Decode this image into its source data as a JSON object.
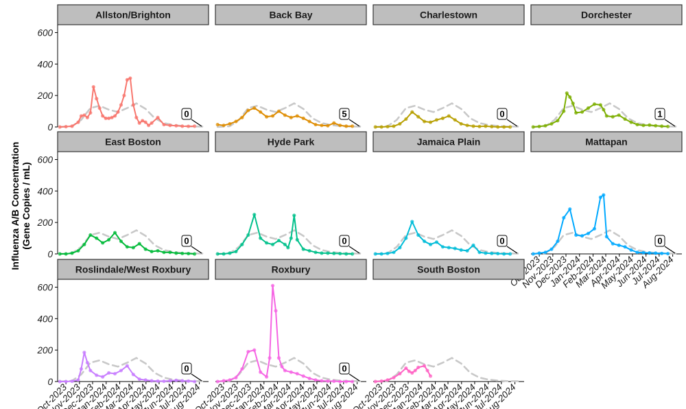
{
  "chart_data": {
    "type": "line",
    "ylabel": [
      "Influenza A/B Concentration",
      "(Gene Copies / mL)"
    ],
    "ylim": [
      0,
      650
    ],
    "yticks": [
      0,
      200,
      400,
      600
    ],
    "xlim": [
      "2023-09-12",
      "2024-08-22"
    ],
    "xticks": [
      "2023-10-01",
      "2023-11-01",
      "2023-12-01",
      "2024-01-01",
      "2024-02-01",
      "2024-03-01",
      "2024-04-01",
      "2024-05-01",
      "2024-06-01",
      "2024-07-01",
      "2024-08-01"
    ],
    "xtick_labels": [
      "Oct-2023",
      "Nov-2023",
      "Dec-2023",
      "Jan-2024",
      "Feb-2024",
      "Mar-2024",
      "Apr-2024",
      "May-2024",
      "Jun-2024",
      "Jul-2024",
      "Aug-2024"
    ],
    "grid": false,
    "reference": {
      "style": "dashed",
      "color": "#c8c8c8",
      "x": [
        "2023-09-17",
        "2023-10-15",
        "2023-11-05",
        "2023-11-26",
        "2023-12-17",
        "2024-01-07",
        "2024-01-28",
        "2024-02-18",
        "2024-03-10",
        "2024-03-31",
        "2024-04-21",
        "2024-05-12",
        "2024-06-02",
        "2024-06-23",
        "2024-07-14",
        "2024-08-11"
      ],
      "y": [
        0,
        5,
        45,
        120,
        135,
        110,
        95,
        120,
        150,
        115,
        55,
        25,
        12,
        6,
        3,
        2
      ]
    },
    "panels": [
      {
        "name": "Allston/Brighton",
        "color": "#F8766D",
        "label": "0",
        "x": [
          "2023-09-17",
          "2023-10-01",
          "2023-10-15",
          "2023-10-29",
          "2023-11-05",
          "2023-11-12",
          "2023-11-19",
          "2023-11-26",
          "2023-12-03",
          "2023-12-10",
          "2023-12-17",
          "2023-12-24",
          "2023-12-31",
          "2024-01-07",
          "2024-01-14",
          "2024-01-21",
          "2024-01-28",
          "2024-02-04",
          "2024-02-11",
          "2024-02-18",
          "2024-02-25",
          "2024-03-03",
          "2024-03-10",
          "2024-03-17",
          "2024-03-24",
          "2024-03-31",
          "2024-04-07",
          "2024-04-14",
          "2024-04-28",
          "2024-05-12",
          "2024-05-26",
          "2024-06-09",
          "2024-06-23",
          "2024-07-07",
          "2024-07-21"
        ],
        "y": [
          0,
          2,
          5,
          30,
          70,
          75,
          60,
          90,
          255,
          180,
          120,
          70,
          55,
          55,
          60,
          70,
          95,
          140,
          200,
          300,
          310,
          140,
          60,
          25,
          40,
          30,
          10,
          25,
          60,
          15,
          10,
          8,
          5,
          4,
          5
        ]
      },
      {
        "name": "Back Bay",
        "color": "#DE8C00",
        "label": "5",
        "x": [
          "2023-09-17",
          "2023-10-01",
          "2023-10-15",
          "2023-10-29",
          "2023-11-12",
          "2023-11-26",
          "2023-12-10",
          "2023-12-24",
          "2024-01-07",
          "2024-01-21",
          "2024-02-04",
          "2024-02-18",
          "2024-03-03",
          "2024-03-17",
          "2024-03-31",
          "2024-04-14",
          "2024-04-28",
          "2024-05-12",
          "2024-05-26",
          "2024-06-09",
          "2024-06-23",
          "2024-07-07",
          "2024-07-21"
        ],
        "y": [
          15,
          10,
          20,
          35,
          60,
          105,
          120,
          95,
          65,
          70,
          100,
          75,
          60,
          70,
          55,
          35,
          15,
          10,
          8,
          25,
          10,
          5,
          5
        ]
      },
      {
        "name": "Charlestown",
        "color": "#B79F00",
        "label": "0",
        "x": [
          "2023-09-17",
          "2023-10-01",
          "2023-10-15",
          "2023-10-29",
          "2023-11-12",
          "2023-11-26",
          "2023-12-10",
          "2023-12-24",
          "2024-01-07",
          "2024-01-21",
          "2024-02-04",
          "2024-02-18",
          "2024-03-03",
          "2024-03-17",
          "2024-03-31",
          "2024-04-14",
          "2024-04-28",
          "2024-05-12",
          "2024-05-26",
          "2024-06-09",
          "2024-06-23",
          "2024-07-07",
          "2024-07-21"
        ],
        "y": [
          0,
          0,
          2,
          5,
          20,
          50,
          95,
          65,
          35,
          30,
          45,
          55,
          70,
          45,
          20,
          10,
          5,
          3,
          5,
          2,
          0,
          0,
          0
        ]
      },
      {
        "name": "Dorchester",
        "color": "#7CAE00",
        "label": "1",
        "x": [
          "2023-09-17",
          "2023-10-01",
          "2023-10-15",
          "2023-10-29",
          "2023-11-12",
          "2023-11-26",
          "2023-12-03",
          "2023-12-10",
          "2023-12-17",
          "2023-12-24",
          "2024-01-07",
          "2024-01-21",
          "2024-02-04",
          "2024-02-18",
          "2024-02-25",
          "2024-03-03",
          "2024-03-17",
          "2024-03-31",
          "2024-04-14",
          "2024-04-28",
          "2024-05-12",
          "2024-05-26",
          "2024-06-09",
          "2024-06-23",
          "2024-07-07",
          "2024-07-21"
        ],
        "y": [
          0,
          3,
          8,
          20,
          40,
          100,
          215,
          190,
          150,
          90,
          95,
          120,
          145,
          140,
          110,
          70,
          65,
          75,
          50,
          30,
          15,
          10,
          12,
          8,
          5,
          3
        ]
      },
      {
        "name": "East Boston",
        "color": "#00BA38",
        "label": "0",
        "x": [
          "2023-09-17",
          "2023-10-01",
          "2023-10-15",
          "2023-10-29",
          "2023-11-12",
          "2023-11-26",
          "2023-12-10",
          "2023-12-24",
          "2024-01-07",
          "2024-01-21",
          "2024-02-04",
          "2024-02-18",
          "2024-03-03",
          "2024-03-17",
          "2024-03-31",
          "2024-04-14",
          "2024-04-28",
          "2024-05-12",
          "2024-05-26",
          "2024-06-09",
          "2024-06-23",
          "2024-07-07",
          "2024-07-21"
        ],
        "y": [
          0,
          0,
          5,
          20,
          60,
          120,
          100,
          70,
          90,
          135,
          80,
          45,
          40,
          65,
          30,
          15,
          20,
          10,
          10,
          5,
          3,
          2,
          0
        ]
      },
      {
        "name": "Hyde Park",
        "color": "#00C08B",
        "label": "0",
        "x": [
          "2023-09-17",
          "2023-10-01",
          "2023-10-15",
          "2023-10-29",
          "2023-11-12",
          "2023-11-26",
          "2023-12-10",
          "2023-12-24",
          "2024-01-07",
          "2024-01-21",
          "2024-02-04",
          "2024-02-18",
          "2024-02-25",
          "2024-03-03",
          "2024-03-10",
          "2024-03-17",
          "2024-03-31",
          "2024-04-14",
          "2024-04-28",
          "2024-05-12",
          "2024-05-26",
          "2024-06-09",
          "2024-06-23",
          "2024-07-07",
          "2024-07-21"
        ],
        "y": [
          0,
          0,
          5,
          15,
          60,
          120,
          250,
          100,
          70,
          60,
          85,
          60,
          40,
          100,
          245,
          90,
          30,
          20,
          10,
          5,
          5,
          3,
          2,
          0,
          0
        ]
      },
      {
        "name": "Jamaica Plain",
        "color": "#00BCD8",
        "label": "0",
        "x": [
          "2023-09-17",
          "2023-10-01",
          "2023-10-15",
          "2023-10-29",
          "2023-11-12",
          "2023-11-26",
          "2023-12-10",
          "2023-12-24",
          "2024-01-07",
          "2024-01-21",
          "2024-02-04",
          "2024-02-18",
          "2024-03-03",
          "2024-03-17",
          "2024-03-31",
          "2024-04-14",
          "2024-04-28",
          "2024-05-12",
          "2024-05-26",
          "2024-06-09",
          "2024-06-23",
          "2024-07-07",
          "2024-07-21"
        ],
        "y": [
          0,
          0,
          3,
          10,
          40,
          100,
          205,
          120,
          80,
          60,
          75,
          45,
          40,
          35,
          25,
          20,
          55,
          10,
          5,
          3,
          2,
          0,
          0
        ]
      },
      {
        "name": "Mattapan",
        "color": "#00A9FF",
        "label": "0",
        "x": [
          "2023-09-17",
          "2023-10-01",
          "2023-10-15",
          "2023-10-29",
          "2023-11-12",
          "2023-11-26",
          "2023-12-10",
          "2023-12-24",
          "2024-01-07",
          "2024-01-21",
          "2024-02-04",
          "2024-02-18",
          "2024-02-25",
          "2024-03-03",
          "2024-03-17",
          "2024-03-31",
          "2024-04-14",
          "2024-04-28",
          "2024-05-12",
          "2024-05-26",
          "2024-06-09",
          "2024-06-23",
          "2024-07-07",
          "2024-07-21"
        ],
        "y": [
          0,
          5,
          10,
          30,
          80,
          230,
          285,
          120,
          115,
          130,
          160,
          360,
          375,
          110,
          65,
          55,
          45,
          25,
          10,
          8,
          6,
          5,
          3,
          2
        ]
      },
      {
        "name": "Roslindale/West Roxbury",
        "color": "#C77CFF",
        "label": "0",
        "x": [
          "2023-09-17",
          "2023-10-01",
          "2023-10-15",
          "2023-10-29",
          "2023-11-05",
          "2023-11-12",
          "2023-11-19",
          "2023-11-26",
          "2023-12-10",
          "2023-12-24",
          "2024-01-07",
          "2024-01-21",
          "2024-02-04",
          "2024-02-18",
          "2024-03-03",
          "2024-03-17",
          "2024-03-31",
          "2024-04-14",
          "2024-04-28",
          "2024-05-12",
          "2024-05-26",
          "2024-06-09",
          "2024-06-23",
          "2024-07-07",
          "2024-07-21"
        ],
        "y": [
          0,
          0,
          2,
          10,
          80,
          185,
          120,
          70,
          40,
          30,
          55,
          50,
          70,
          100,
          45,
          15,
          10,
          5,
          3,
          2,
          5,
          8,
          5,
          3,
          0
        ]
      },
      {
        "name": "Roxbury",
        "color": "#F564E3",
        "label": "0",
        "x": [
          "2023-09-17",
          "2023-10-01",
          "2023-10-15",
          "2023-10-29",
          "2023-11-12",
          "2023-11-26",
          "2023-12-10",
          "2023-12-24",
          "2024-01-07",
          "2024-01-14",
          "2024-01-21",
          "2024-01-28",
          "2024-02-04",
          "2024-02-11",
          "2024-02-18",
          "2024-03-03",
          "2024-03-17",
          "2024-03-31",
          "2024-04-14",
          "2024-04-28",
          "2024-05-12",
          "2024-05-26",
          "2024-06-09",
          "2024-06-23",
          "2024-07-07",
          "2024-07-21"
        ],
        "y": [
          0,
          5,
          10,
          25,
          80,
          190,
          200,
          60,
          30,
          150,
          610,
          450,
          150,
          95,
          70,
          60,
          50,
          35,
          20,
          10,
          5,
          3,
          2,
          0,
          0,
          0
        ]
      },
      {
        "name": "South Boston",
        "color": "#FF61C3",
        "label": "",
        "x": [
          "2023-09-17",
          "2023-10-01",
          "2023-10-15",
          "2023-10-29",
          "2023-11-12",
          "2023-11-26",
          "2023-12-03",
          "2023-12-10",
          "2023-12-17",
          "2023-12-24",
          "2024-01-07",
          "2024-01-14",
          "2024-01-21"
        ],
        "y": [
          0,
          3,
          10,
          25,
          50,
          85,
          65,
          55,
          70,
          90,
          100,
          70,
          35
        ]
      }
    ]
  }
}
